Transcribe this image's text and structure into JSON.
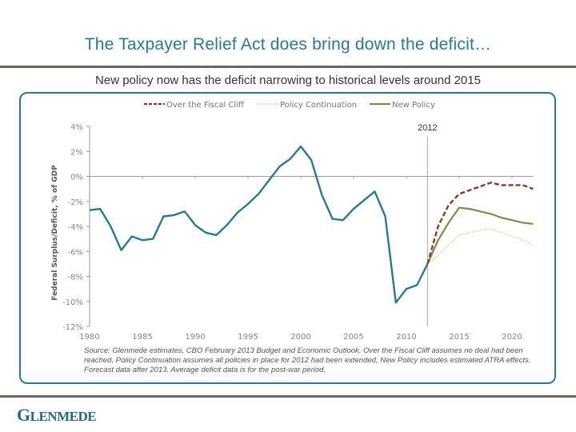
{
  "slide": {
    "title": "The Taxpayer Relief Act does bring down the deficit…",
    "subtitle": "New policy now has the deficit narrowing to historical levels around 2015",
    "source": "Source: Glenmede estimates, CBO February 2013 Budget and Economic Outlook. Over the Fiscal Cliff assumes no deal had been reached, Policy Continuation assumes all policies in place for 2012 had been extended, New Policy includes estimated ATRA effects. Forecast data after 2013. Average deficit data is for the post-war period.",
    "logo": {
      "first": "G",
      "rest": "LENMEDE"
    }
  },
  "colors": {
    "title": "#2a7a94",
    "historical": "#2a7a8f",
    "fiscal_cliff": "#8b3a2a",
    "policy_continuation": "#d9c77a",
    "new_policy": "#7f8b4a",
    "rule": "#6f665b"
  },
  "chart_data": {
    "type": "line",
    "title": "",
    "xlabel": "",
    "ylabel": "Federal Surplus/Deficit, % of GDP",
    "xlim": [
      1980,
      2022
    ],
    "ylim": [
      -12,
      4
    ],
    "xticks": [
      1980,
      1985,
      1990,
      1995,
      2000,
      2005,
      2010,
      2015,
      2020
    ],
    "xtick_labels": [
      "1980",
      "1985",
      "1990",
      "1995",
      "2000",
      "2005",
      "2010",
      "2015",
      "2020"
    ],
    "yticks": [
      4,
      2,
      0,
      -2,
      -4,
      -6,
      -8,
      -10,
      -12
    ],
    "ytick_labels": [
      "4%",
      "2%",
      "0%",
      "-2%",
      "-4%",
      "-6%",
      "-8%",
      "-10%",
      "-12%"
    ],
    "grid": false,
    "legend_position": "top",
    "annotations": [
      {
        "label": "2012",
        "x": 2012,
        "type": "vertical-line"
      }
    ],
    "series": [
      {
        "name": "Historical",
        "key": "historical",
        "style": "solid",
        "in_legend": false,
        "x": [
          1980,
          1981,
          1982,
          1983,
          1984,
          1985,
          1986,
          1987,
          1988,
          1989,
          1990,
          1991,
          1992,
          1993,
          1994,
          1995,
          1996,
          1997,
          1998,
          1999,
          2000,
          2001,
          2002,
          2003,
          2004,
          2005,
          2006,
          2007,
          2008,
          2009,
          2010,
          2011,
          2012
        ],
        "values": [
          -2.7,
          -2.6,
          -4.0,
          -5.9,
          -4.8,
          -5.1,
          -5.0,
          -3.2,
          -3.1,
          -2.8,
          -3.9,
          -4.5,
          -4.7,
          -3.9,
          -2.9,
          -2.2,
          -1.4,
          -0.3,
          0.8,
          1.4,
          2.4,
          1.3,
          -1.5,
          -3.4,
          -3.5,
          -2.6,
          -1.9,
          -1.2,
          -3.2,
          -10.1,
          -9.0,
          -8.7,
          -7.0
        ]
      },
      {
        "name": "Over the Fiscal Cliff",
        "key": "fiscal_cliff",
        "style": "dashed",
        "in_legend": true,
        "x": [
          2012,
          2013,
          2014,
          2015,
          2016,
          2017,
          2018,
          2019,
          2020,
          2021,
          2022
        ],
        "values": [
          -7.0,
          -4.0,
          -2.3,
          -1.4,
          -1.1,
          -0.8,
          -0.5,
          -0.7,
          -0.7,
          -0.7,
          -1.0
        ]
      },
      {
        "name": "Policy Continuation",
        "key": "policy_continuation",
        "style": "dotted",
        "in_legend": true,
        "x": [
          2012,
          2013,
          2014,
          2015,
          2016,
          2017,
          2018,
          2019,
          2020,
          2021,
          2022
        ],
        "values": [
          -7.0,
          -6.3,
          -5.5,
          -4.7,
          -4.5,
          -4.3,
          -4.2,
          -4.5,
          -4.8,
          -5.1,
          -5.5
        ]
      },
      {
        "name": "New Policy",
        "key": "new_policy",
        "style": "solid",
        "in_legend": true,
        "x": [
          2012,
          2013,
          2014,
          2015,
          2016,
          2017,
          2018,
          2019,
          2020,
          2021,
          2022
        ],
        "values": [
          -7.0,
          -5.1,
          -3.7,
          -2.5,
          -2.6,
          -2.8,
          -3.0,
          -3.3,
          -3.5,
          -3.7,
          -3.8
        ]
      }
    ]
  }
}
